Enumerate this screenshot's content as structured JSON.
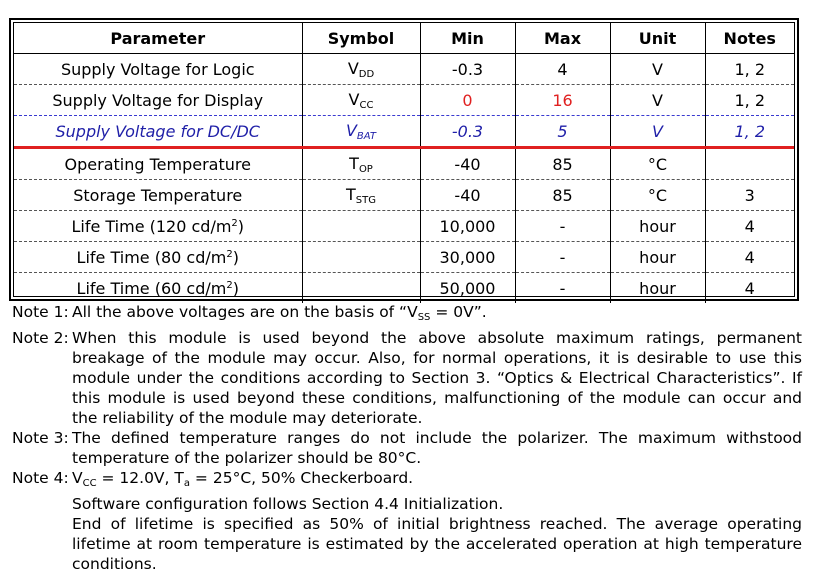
{
  "table": {
    "headers": [
      "Parameter",
      "Symbol",
      "Min",
      "Max",
      "Unit",
      "Notes"
    ],
    "rows": [
      {
        "parameter": "Supply Voltage for Logic",
        "sym_main": "V",
        "sym_sub": "DD",
        "min": "-0.3",
        "max": "4",
        "unit": "V",
        "notes": "1, 2"
      },
      {
        "parameter": "Supply Voltage for Display",
        "sym_main": "V",
        "sym_sub": "CC",
        "min": "0",
        "max": "16",
        "unit": "V",
        "notes": "1, 2"
      },
      {
        "parameter": "Supply Voltage for DC/DC",
        "sym_main": "V",
        "sym_sub": "BAT",
        "min": "-0.3",
        "max": "5",
        "unit": "V",
        "notes": "1, 2"
      },
      {
        "parameter": "Operating Temperature",
        "sym_main": "T",
        "sym_sub": "OP",
        "min": "-40",
        "max": "85",
        "unit": "°C",
        "notes": ""
      },
      {
        "parameter": "Storage Temperature",
        "sym_main": "T",
        "sym_sub": "STG",
        "min": "-40",
        "max": "85",
        "unit": "°C",
        "notes": "3"
      },
      {
        "parameter_prefix": "Life Time (120 cd/m",
        "parameter_sup": "2",
        "parameter_suffix": ")",
        "min": "10,000",
        "max": "-",
        "unit": "hour",
        "notes": "4"
      },
      {
        "parameter_prefix": "Life Time (80 cd/m",
        "parameter_sup": "2",
        "parameter_suffix": ")",
        "min": "30,000",
        "max": "-",
        "unit": "hour",
        "notes": "4"
      },
      {
        "parameter_prefix": "Life Time (60 cd/m",
        "parameter_sup": "2",
        "parameter_suffix": ")",
        "min": "50,000",
        "max": "-",
        "unit": "hour",
        "notes": "4"
      }
    ]
  },
  "notes": {
    "n1_label": "Note 1:",
    "n1_a": "All the above voltages are on the basis of “V",
    "n1_sub": "SS",
    "n1_b": " = 0V”.",
    "n2_label": "Note 2:",
    "n2_text": "When this module is used beyond the above absolute maximum ratings, permanent breakage of the module may occur.  Also, for normal operations, it is desirable to use this module under the conditions according to Section 3. “Optics & Electrical Characteristics”.  If this module is used beyond these conditions, malfunctioning of the module can occur and the reliability of the module may deteriorate.",
    "n3_label": "Note 3:",
    "n3_text": "The defined temperature ranges do not include the polarizer.  The maximum withstood temperature of the polarizer should be 80°C.",
    "n4_label": "Note 4:",
    "n4_a": "V",
    "n4_sub1": "CC",
    "n4_b": " = 12.0V, T",
    "n4_sub2": "a",
    "n4_c": " = 25°C, 50% Checkerboard.",
    "n4_line2": "Software configuration follows Section 4.4 Initialization.",
    "n4_line3": "End of lifetime is specified as 50% of initial brightness reached.  The average operating lifetime at room temperature is estimated by the accelerated operation at high temperature conditions."
  },
  "colors": {
    "highlight_row_text": "#1f1fa8",
    "highlight_underline": "#e02020",
    "red_values": "#e02020"
  }
}
